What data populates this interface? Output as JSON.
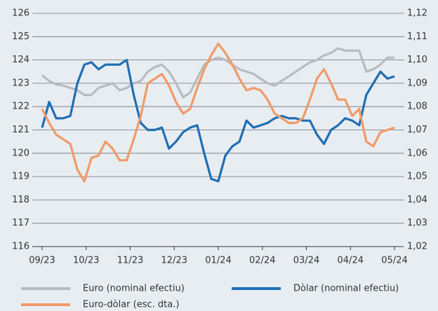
{
  "chart_data": {
    "type": "line",
    "x": [
      0,
      0.16,
      0.32,
      0.48,
      0.64,
      0.8,
      0.96,
      1.12,
      1.28,
      1.44,
      1.6,
      1.76,
      1.92,
      2.08,
      2.24,
      2.4,
      2.56,
      2.72,
      2.88,
      3.04,
      3.2,
      3.36,
      3.52,
      3.68,
      3.84,
      4,
      4.16,
      4.32,
      4.48,
      4.64,
      4.8,
      4.96,
      5.12,
      5.28,
      5.44,
      5.6,
      5.76,
      5.92,
      6.08,
      6.24,
      6.4,
      6.56,
      6.72,
      6.88,
      7.04,
      7.2,
      7.36,
      7.52,
      7.68,
      7.84,
      8
    ],
    "xlim": [
      0,
      8
    ],
    "xticks": [
      {
        "value": 0,
        "label": "09/23"
      },
      {
        "value": 1,
        "label": "10/23"
      },
      {
        "value": 2,
        "label": "11/23"
      },
      {
        "value": 3,
        "label": "12/23"
      },
      {
        "value": 4,
        "label": "01/24"
      },
      {
        "value": 5,
        "label": "02/24"
      },
      {
        "value": 6,
        "label": "03/24"
      },
      {
        "value": 7,
        "label": "04/24"
      },
      {
        "value": 8,
        "label": "05/24"
      }
    ],
    "ylim": [
      116,
      126
    ],
    "yticks": [
      116,
      117,
      118,
      119,
      120,
      121,
      122,
      123,
      124,
      125,
      126
    ],
    "y2lim": [
      1.02,
      1.12
    ],
    "y2ticks": [
      {
        "value": 1.02,
        "label": "1,02"
      },
      {
        "value": 1.03,
        "label": "1,03"
      },
      {
        "value": 1.04,
        "label": "1,04"
      },
      {
        "value": 1.05,
        "label": "1,05"
      },
      {
        "value": 1.06,
        "label": "1,06"
      },
      {
        "value": 1.07,
        "label": "1,07"
      },
      {
        "value": 1.08,
        "label": "1,08"
      },
      {
        "value": 1.09,
        "label": "1,09"
      },
      {
        "value": 1.1,
        "label": "1,10"
      },
      {
        "value": 1.11,
        "label": "1,11"
      },
      {
        "value": 1.12,
        "label": "1,12"
      }
    ],
    "grid": true,
    "series": [
      {
        "name": "Euro (nominal efectiu)",
        "color": "#b9bcbe",
        "values": [
          123.35,
          123.1,
          122.95,
          122.9,
          122.8,
          122.7,
          122.5,
          122.5,
          122.8,
          122.9,
          123.0,
          122.7,
          122.8,
          123.0,
          123.1,
          123.5,
          123.7,
          123.8,
          123.5,
          123.0,
          122.4,
          122.6,
          123.2,
          123.8,
          124.0,
          124.1,
          124.0,
          123.8,
          123.6,
          123.5,
          123.4,
          123.2,
          123.0,
          122.9,
          123.1,
          123.3,
          123.5,
          123.7,
          123.9,
          124.0,
          124.2,
          124.3,
          124.5,
          124.4,
          124.4,
          124.4,
          123.5,
          123.6,
          123.8,
          124.1,
          124.1
        ]
      },
      {
        "name": "Dòlar (nominal efectiu)",
        "color": "#1f6eb5",
        "values": [
          121.1,
          122.2,
          121.5,
          121.5,
          121.6,
          123.0,
          123.8,
          123.9,
          123.6,
          123.8,
          123.8,
          123.8,
          124.0,
          122.5,
          121.3,
          121.0,
          121.0,
          121.1,
          120.2,
          120.5,
          120.9,
          121.1,
          121.2,
          120.0,
          118.9,
          118.8,
          119.9,
          120.3,
          120.5,
          121.4,
          121.1,
          121.2,
          121.3,
          121.5,
          121.6,
          121.5,
          121.5,
          121.4,
          121.4,
          120.8,
          120.4,
          121.0,
          121.2,
          121.5,
          121.4,
          121.2,
          122.5,
          123.0,
          123.5,
          123.2,
          123.3
        ]
      },
      {
        "name": "Euro-dòlar (esc. dta.)",
        "color": "#f09a68",
        "axis": "y2",
        "values": [
          1.079,
          1.073,
          1.068,
          1.066,
          1.064,
          1.053,
          1.048,
          1.058,
          1.059,
          1.065,
          1.062,
          1.057,
          1.057,
          1.066,
          1.076,
          1.09,
          1.092,
          1.094,
          1.089,
          1.082,
          1.077,
          1.079,
          1.088,
          1.096,
          1.102,
          1.107,
          1.103,
          1.098,
          1.092,
          1.087,
          1.088,
          1.087,
          1.083,
          1.077,
          1.075,
          1.073,
          1.073,
          1.075,
          1.083,
          1.092,
          1.096,
          1.09,
          1.083,
          1.083,
          1.076,
          1.079,
          1.065,
          1.063,
          1.069,
          1.07,
          1.071
        ]
      }
    ]
  }
}
